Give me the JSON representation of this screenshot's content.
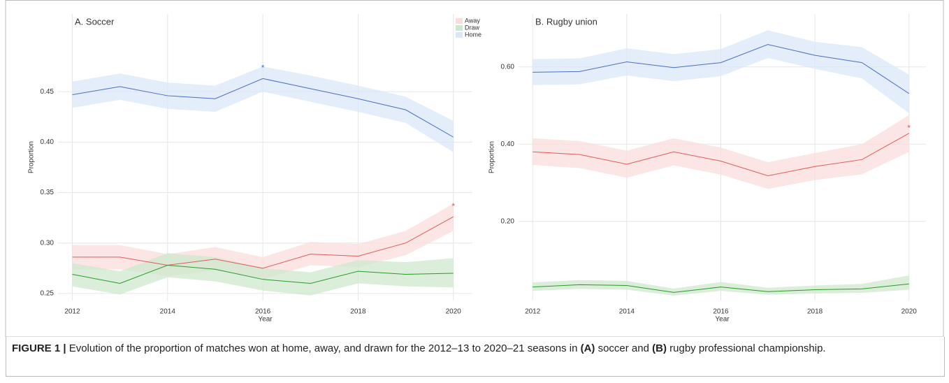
{
  "chart_data": [
    {
      "type": "line",
      "title": "A. Soccer",
      "x_label": "Year",
      "y_label": "Proportion",
      "x": [
        2012,
        2013,
        2014,
        2015,
        2016,
        2017,
        2018,
        2019,
        2020
      ],
      "xlim": [
        2011.7,
        2020.4
      ],
      "xticks": [
        2012,
        2014,
        2016,
        2018,
        2020
      ],
      "ylim": [
        0.243,
        0.527
      ],
      "yticks": [
        0.25,
        {
          "value": 0.3,
          "label": "0.30"
        },
        0.35,
        {
          "value": 0.4,
          "label": "0.40"
        },
        0.45
      ],
      "grid": true,
      "series": [
        {
          "name": "Away",
          "color": "#e05a5a",
          "band_color": "#fbdcdc",
          "values": [
            0.286,
            0.286,
            0.278,
            0.284,
            0.275,
            0.289,
            0.287,
            0.3,
            0.326
          ],
          "lower": [
            0.274,
            0.274,
            0.267,
            0.273,
            0.264,
            0.278,
            0.276,
            0.288,
            0.312
          ],
          "upper": [
            0.298,
            0.298,
            0.289,
            0.296,
            0.286,
            0.301,
            0.299,
            0.312,
            0.339
          ]
        },
        {
          "name": "Draw",
          "color": "#2a9a2a",
          "band_color": "#cde8cc",
          "values": [
            0.269,
            0.26,
            0.278,
            0.274,
            0.264,
            0.26,
            0.272,
            0.269,
            0.27
          ],
          "lower": [
            0.257,
            0.249,
            0.266,
            0.262,
            0.253,
            0.248,
            0.26,
            0.257,
            0.256
          ],
          "upper": [
            0.28,
            0.272,
            0.29,
            0.286,
            0.275,
            0.271,
            0.283,
            0.281,
            0.285
          ]
        },
        {
          "name": "Home",
          "color": "#4a6fc0",
          "band_color": "#dbe7f8",
          "values": [
            0.447,
            0.455,
            0.446,
            0.443,
            0.463,
            0.453,
            0.443,
            0.432,
            0.405
          ],
          "lower": [
            0.434,
            0.442,
            0.433,
            0.43,
            0.45,
            0.44,
            0.43,
            0.419,
            0.39
          ],
          "upper": [
            0.46,
            0.468,
            0.459,
            0.456,
            0.475,
            0.466,
            0.456,
            0.445,
            0.421
          ]
        }
      ],
      "annotations": [
        {
          "text": "*",
          "x": 2016,
          "y": 0.475,
          "color": "#4a6fc0"
        },
        {
          "text": "*",
          "x": 2020,
          "y": 0.338,
          "color": "#e05a5a"
        }
      ]
    },
    {
      "type": "line",
      "title": "B. Rugby union",
      "x_label": "Year",
      "y_label": "Proportion",
      "x": [
        2012,
        2013,
        2014,
        2015,
        2016,
        2017,
        2018,
        2019,
        2020
      ],
      "xlim": [
        2011.7,
        2020.36
      ],
      "xticks": [
        2012,
        2014,
        2016,
        2018,
        2020
      ],
      "ylim": [
        -0.005,
        0.737
      ],
      "yticks": [
        {
          "value": 0.2,
          "label": "0.20"
        },
        {
          "value": 0.4,
          "label": "0.40"
        },
        {
          "value": 0.6,
          "label": "0.60"
        }
      ],
      "grid": true,
      "series": [
        {
          "color": "#e05a5a",
          "band_color": "#fbdcdc",
          "values": [
            0.38,
            0.373,
            0.348,
            0.38,
            0.356,
            0.318,
            0.342,
            0.36,
            0.428
          ],
          "lower": [
            0.346,
            0.338,
            0.313,
            0.345,
            0.321,
            0.284,
            0.307,
            0.322,
            0.38
          ],
          "upper": [
            0.415,
            0.408,
            0.383,
            0.415,
            0.391,
            0.353,
            0.377,
            0.4,
            0.475
          ]
        },
        {
          "color": "#2a9a2a",
          "band_color": "#cde8cc",
          "values": [
            0.03,
            0.036,
            0.034,
            0.016,
            0.03,
            0.018,
            0.023,
            0.025,
            0.038
          ],
          "lower": [
            0.02,
            0.025,
            0.023,
            0.008,
            0.02,
            0.01,
            0.013,
            0.015,
            0.023
          ],
          "upper": [
            0.042,
            0.048,
            0.046,
            0.026,
            0.043,
            0.028,
            0.034,
            0.038,
            0.06
          ]
        },
        {
          "color": "#4a6fc0",
          "band_color": "#dbe7f8",
          "values": [
            0.586,
            0.588,
            0.613,
            0.598,
            0.611,
            0.658,
            0.63,
            0.611,
            0.531
          ],
          "lower": [
            0.553,
            0.555,
            0.578,
            0.563,
            0.576,
            0.623,
            0.595,
            0.57,
            0.48
          ],
          "upper": [
            0.62,
            0.622,
            0.648,
            0.633,
            0.646,
            0.695,
            0.665,
            0.651,
            0.58
          ]
        }
      ],
      "annotations": [
        {
          "text": "*",
          "x": 2020,
          "y": 0.446,
          "color": "#e05a5a"
        }
      ]
    }
  ],
  "caption": [
    "FIGURE 1 |",
    " Evolution of the proportion of matches won at home, away, and drawn for the 2012–13 to 2020–21 seasons in ",
    "(A)",
    " soccer and ",
    "(B)",
    " rugby professional championship."
  ]
}
